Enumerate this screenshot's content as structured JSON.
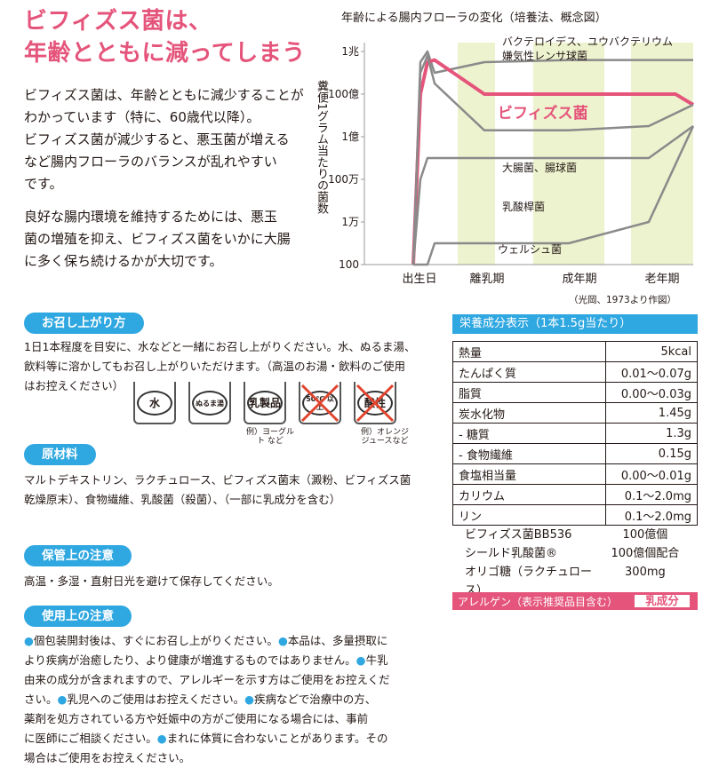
{
  "headline": {
    "line1": "ビフィズス菌は、",
    "line2": "年齢とともに減ってしまう"
  },
  "intro": {
    "p1": [
      "ビフィズス菌は、年齢とともに減少することが",
      "わかっています（特に、60歳代以降）。",
      "ビフィズス菌が減少すると、悪玉菌が増える",
      "など腸内フローラのバランスが乱れやすい",
      "です。"
    ],
    "p2": [
      "良好な腸内環境を維持するためには、悪玉",
      "菌の増殖を抑え、ビフィズス菌をいかに大腸",
      "に多く保ち続けるかが大切です。"
    ]
  },
  "chart_data": {
    "type": "line",
    "title": "年齢による腸内フローラの変化（培養法、概念図）",
    "ylabel": "糞便1グラム当たりの菌数",
    "yticks": [
      "1兆",
      "100億",
      "1億",
      "100万",
      "1万",
      "100"
    ],
    "xticks": [
      "出生日",
      "離乳期",
      "成年期",
      "老年期"
    ],
    "source": "（光岡、1973より作図）",
    "series": [
      {
        "name": "バクテロイデス、ユウバクテリウム 嫌気性レンサ球菌",
        "color": "#8a8a8a",
        "x": [
          0,
          0.1,
          0.2,
          0.3,
          1,
          2,
          3,
          4
        ],
        "y": [
          2,
          11.5,
          12,
          11,
          11.5,
          11.6,
          11.6,
          11.6
        ]
      },
      {
        "name": "ビフィズス菌",
        "color": "#e5557b",
        "x": [
          0,
          0.1,
          0.2,
          0.3,
          1,
          2,
          3,
          3.6,
          4
        ],
        "y": [
          2,
          10,
          11.5,
          11.6,
          10,
          10,
          10,
          10,
          9.5
        ]
      },
      {
        "name": "大腸菌、腸球菌",
        "color": "#8a8a8a",
        "x": [
          0,
          0.1,
          0.2,
          0.3,
          1,
          2,
          3,
          4
        ],
        "y": [
          2,
          11,
          11.8,
          10.5,
          8.3,
          8.3,
          8.5,
          9.5
        ]
      },
      {
        "name": "乳酸桿菌",
        "color": "#8a8a8a",
        "x": [
          0,
          0.1,
          0.2,
          0.3,
          1,
          2,
          3,
          4
        ],
        "y": [
          2,
          6,
          7,
          7,
          7,
          7,
          7,
          8.5
        ]
      },
      {
        "name": "ウェルシュ菌",
        "color": "#8a8a8a",
        "x": [
          0,
          0.1,
          0.2,
          0.3,
          1,
          2,
          3,
          4
        ],
        "y": [
          2,
          2,
          2,
          3,
          3,
          3,
          4,
          8.5
        ]
      }
    ]
  },
  "sections": {
    "usage": {
      "label": "お召し上がり方",
      "text": [
        "1日1本程度を目安に、水などと一緒にお召し上がりください。水、ぬるま湯、",
        "飲料等に溶かしてもお召し上がりいただけます。（高温のお湯・飲料のご使用",
        "はお控えください）"
      ],
      "icons": [
        {
          "label": "水",
          "note": ""
        },
        {
          "label": "ぬるま湯",
          "note": ""
        },
        {
          "label": "乳製品",
          "note": "例）ヨーグルト など"
        },
        {
          "label": "50℃ 以上",
          "note": ""
        },
        {
          "label": "酸性",
          "note": "例）オレンジ ジュースなど"
        }
      ]
    },
    "ingredients": {
      "label": "原材料",
      "text": [
        "マルトデキストリン、ラクチュロース、ビフィズス菌末（澱粉、ビフィズス菌",
        "乾燥原末）、食物繊維、乳酸菌（殺菌）、（一部に乳成分を含む）"
      ]
    },
    "storage": {
      "label": "保管上の注意",
      "text": "高温・多湿・直射日光を避けて保存してください。"
    },
    "caution": {
      "label": "使用上の注意",
      "text": [
        "●個包装開封後は、すぐにお召し上がりください。●本品は、多量摂取に",
        "より疾病が治癒したり、より健康が増進するものではありません。●牛乳",
        "由来の成分が含まれますので、アレルギーを示す方はご使用をお控えくだ",
        "さい。●乳児へのご使用はお控えください。●疾病などで治療中の方、",
        "薬剤を処方されている方や妊娠中の方がご使用になる場合には、事前",
        "に医師にご相談ください。●まれに体質に合わないことがあります。その",
        "場合はご使用をお控えください。"
      ]
    }
  },
  "nutrition": {
    "title": "栄養成分表示（1本1.5g当たり）",
    "rows": [
      {
        "k": "熱量",
        "v": "5kcal"
      },
      {
        "k": "たんぱく質",
        "v": "0.01～0.07g"
      },
      {
        "k": "脂質",
        "v": "0.00～0.03g"
      },
      {
        "k": "炭水化物",
        "v": "1.45g"
      },
      {
        "k": "- 糖質",
        "v": "1.3g"
      },
      {
        "k": "- 食物繊維",
        "v": "0.15g"
      },
      {
        "k": "食塩相当量",
        "v": "0.00～0.01g"
      },
      {
        "k": "カリウム",
        "v": "0.1～2.0mg"
      },
      {
        "k": "リン",
        "v": "0.1～2.0mg"
      }
    ],
    "extra": [
      {
        "k": "ビフィズス菌BB536",
        "v": "100億個"
      },
      {
        "k": "シールド乳酸菌®",
        "v": "100億個配合"
      },
      {
        "k": "オリゴ糖（ラクチュロース）",
        "v": "300mg"
      }
    ],
    "allergen_label": "アレルゲン（表示推奨品目含む）",
    "allergen_value": "乳成分"
  },
  "colors": {
    "accent": "#e5557b",
    "blue": "#2fa7e0",
    "band": "#eef3cf"
  }
}
